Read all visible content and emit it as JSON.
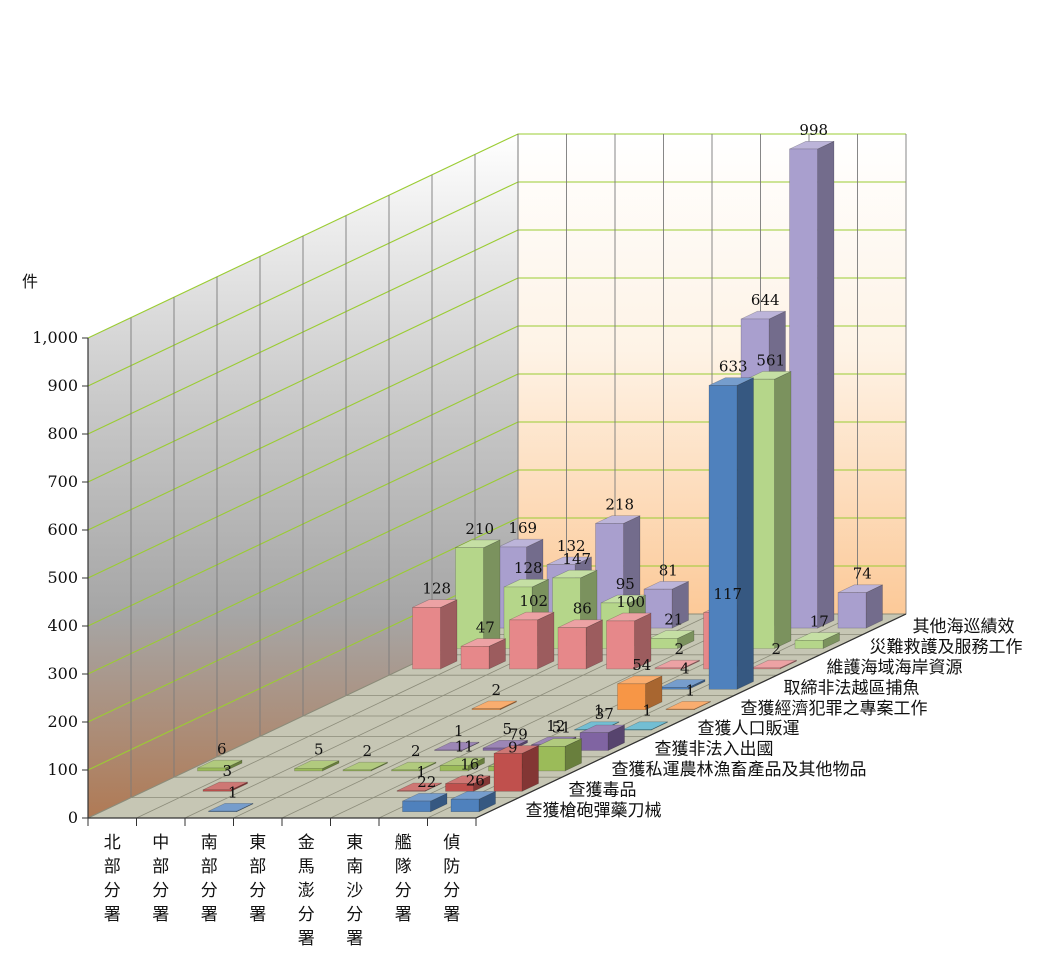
{
  "chart_data": {
    "type": "bar",
    "y_unit": "件",
    "ylim": [
      0,
      1000
    ],
    "y_ticks": [
      "0",
      "100",
      "200",
      "300",
      "400",
      "500",
      "600",
      "700",
      "800",
      "900",
      "1,000"
    ],
    "categories": [
      "北部分署",
      "中部分署",
      "南部分署",
      "東部分署",
      "金馬澎分署",
      "東南沙分署",
      "艦隊分署",
      "偵防分署"
    ],
    "series": [
      {
        "name": "查獲槍砲彈藥刀械",
        "color": "#4f81bd",
        "values": [
          null,
          null,
          1,
          null,
          null,
          null,
          22,
          26
        ]
      },
      {
        "name": "查獲毒品",
        "color": "#c0504d",
        "values": [
          null,
          3,
          null,
          null,
          null,
          1,
          16,
          79
        ]
      },
      {
        "name": "查獲私運農林漁畜產品及其他物品",
        "color": "#9bbb59",
        "values": [
          6,
          null,
          5,
          2,
          2,
          11,
          9,
          51
        ]
      },
      {
        "name": "查獲非法入出國",
        "color": "#8064a2",
        "values": [
          null,
          null,
          null,
          null,
          1,
          5,
          12,
          37
        ]
      },
      {
        "name": "查獲人口販運",
        "color": "#4bacc6",
        "values": [
          null,
          null,
          null,
          null,
          null,
          null,
          1,
          1
        ]
      },
      {
        "name": "查獲經濟犯罪之專案工作",
        "color": "#f79646",
        "values": [
          null,
          null,
          null,
          2,
          null,
          null,
          54,
          1
        ]
      },
      {
        "name": "取締非法越區捕魚",
        "color": "#4f81bd",
        "values": [
          null,
          null,
          null,
          null,
          null,
          null,
          4,
          633
        ]
      },
      {
        "name": "維護海域海岸資源",
        "color": "#e6888a",
        "values": [
          128,
          47,
          102,
          86,
          100,
          2,
          117,
          2
        ]
      },
      {
        "name": "災難救護及服務工作",
        "color": "#b5d68a",
        "values": [
          210,
          128,
          147,
          95,
          21,
          null,
          561,
          17
        ]
      },
      {
        "name": "其他海巡績效",
        "color": "#a99fce",
        "values": [
          169,
          132,
          218,
          81,
          null,
          644,
          998,
          74
        ]
      }
    ]
  }
}
